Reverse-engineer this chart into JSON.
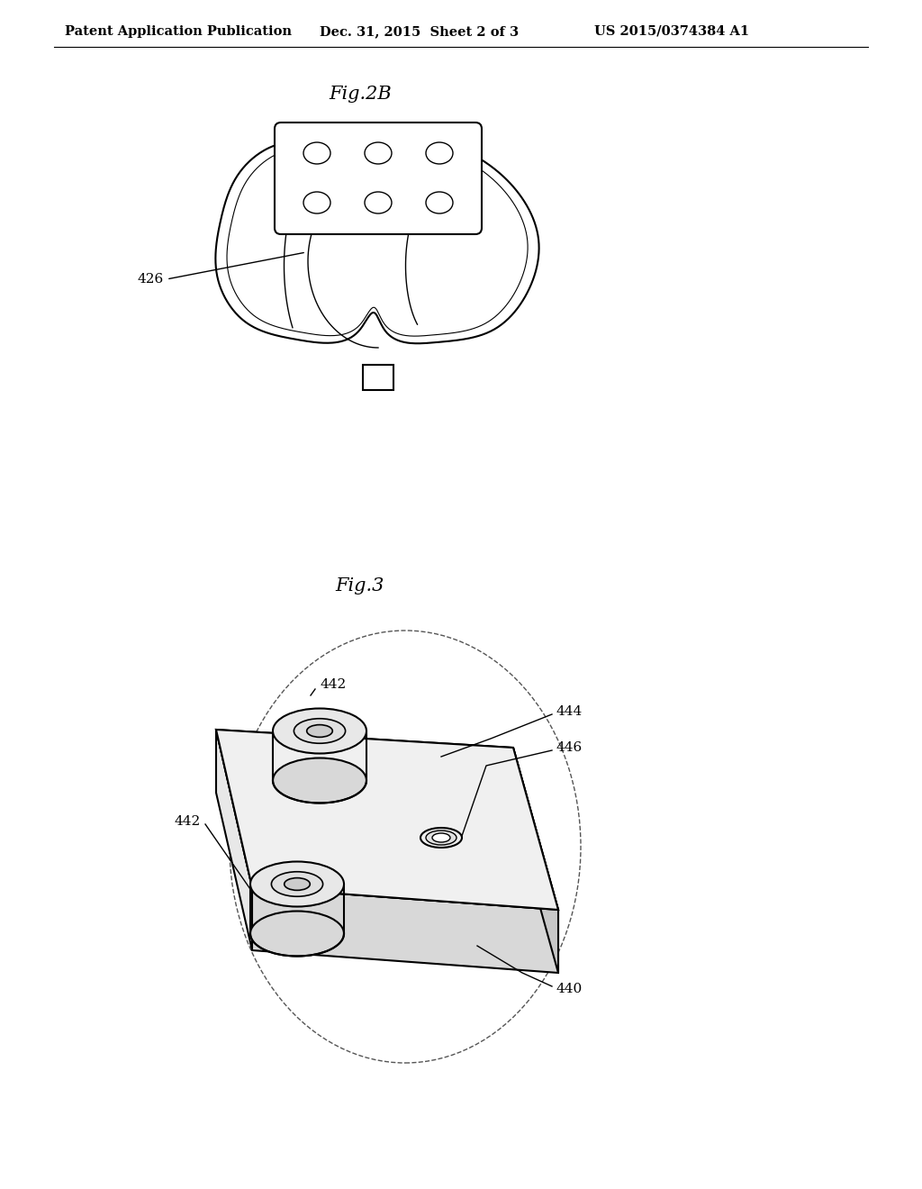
{
  "bg_color": "#ffffff",
  "header_left": "Patent Application Publication",
  "header_mid": "Dec. 31, 2015  Sheet 2 of 3",
  "header_right": "US 2015/0374384 A1",
  "fig2b_label": "Fig.2B",
  "fig3_label": "Fig.3",
  "label_426": "426",
  "label_440": "440",
  "label_442a": "442",
  "label_442b": "442",
  "label_444": "444",
  "label_446": "446",
  "line_color": "#000000",
  "lw_thin": 1.0,
  "lw_med": 1.5,
  "lw_thick": 2.0
}
